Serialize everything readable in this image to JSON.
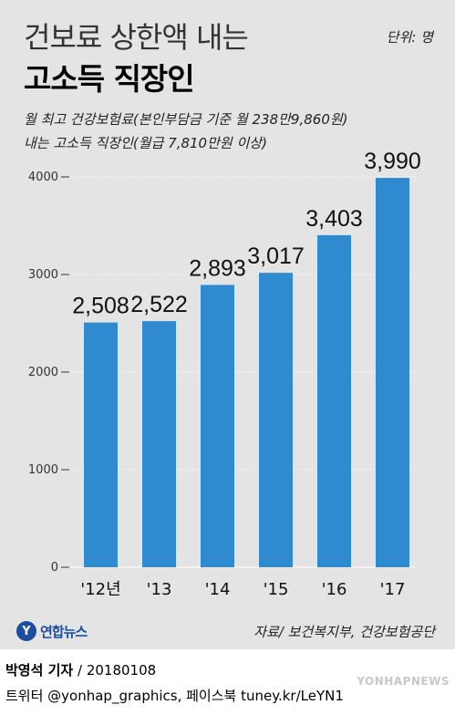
{
  "header": {
    "title_line1": "건보료 상한액 내는",
    "title_line2": "고소득 직장인",
    "unit": "단위: 명",
    "subtitle_line1": "월 최고 건강보험료(본인부담금 기준 월 238만9,860원)",
    "subtitle_line2": "내는 고소득 직장인(월급 7,810만원 이상)"
  },
  "colors": {
    "bar": "#2f8ad0",
    "background": "#e4e4e4",
    "logo": "#1c4ea0"
  },
  "chart_data": {
    "type": "bar",
    "categories": [
      "'12년",
      "'13",
      "'14",
      "'15",
      "'16",
      "'17"
    ],
    "values": [
      2508,
      2522,
      2893,
      3017,
      3403,
      3990
    ],
    "value_labels": [
      "2,508",
      "2,522",
      "2,893",
      "3,017",
      "3,403",
      "3,990"
    ],
    "ylim": [
      0,
      4000
    ],
    "yticks": [
      "0",
      "1000",
      "2000",
      "3000",
      "4000"
    ],
    "grid": true,
    "title": "건보료 상한액 내는 고소득 직장인",
    "xlabel": "",
    "ylabel": ""
  },
  "footer": {
    "logo_mark": "Y",
    "logo_text": "연합뉴스",
    "source": "자료/ 보건복지부, 건강보험공단",
    "reporter_name": "박영석 기자",
    "reporter_date": "/ 20180108",
    "social": "트위터 @yonhap_graphics, 페이스북 tuney.kr/LeYN1",
    "watermark": "YONHAPNEWS"
  }
}
